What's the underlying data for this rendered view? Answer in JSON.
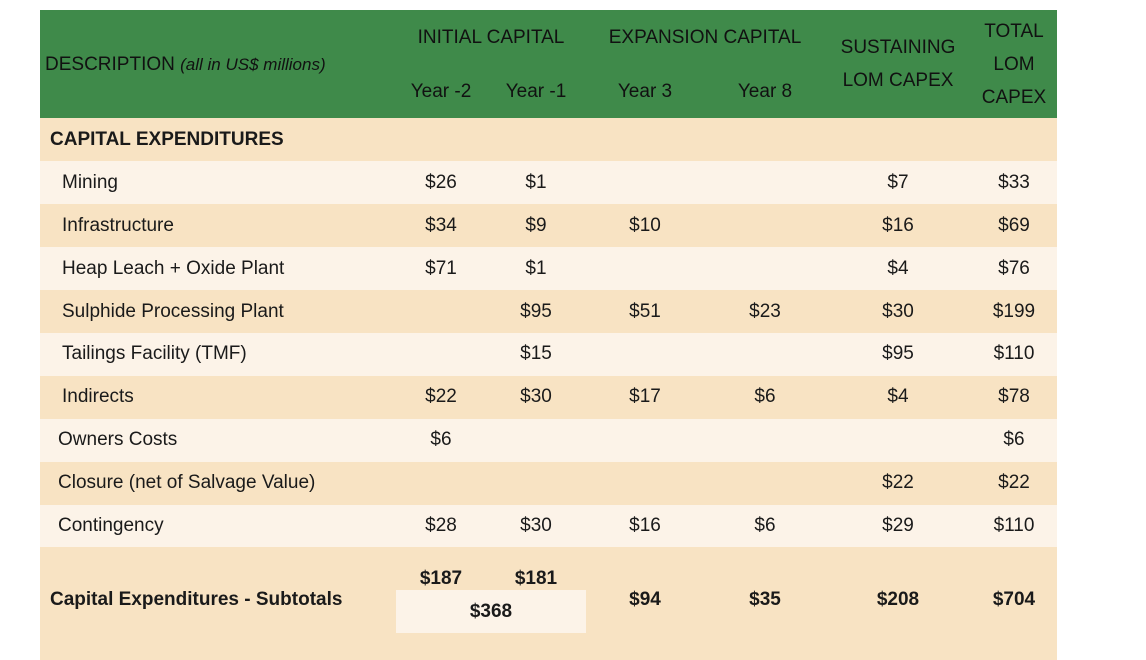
{
  "header": {
    "description_label": "DESCRIPTION",
    "description_unit": "(all in US$ millions)",
    "initial_capital": "INITIAL CAPITAL",
    "expansion_capital": "EXPANSION CAPITAL",
    "sustaining_line1": "SUSTAINING",
    "sustaining_line2": "LOM CAPEX",
    "total_line1": "TOTAL",
    "total_line2": "LOM",
    "total_line3": "CAPEX",
    "year_m2": "Year -2",
    "year_m1": "Year -1",
    "year_3": "Year 3",
    "year_8": "Year 8"
  },
  "section_title": "CAPITAL EXPENDITURES",
  "rows": [
    {
      "label": "Mining",
      "y_m2": "$26",
      "y_m1": "$1",
      "y3": "",
      "y8": "",
      "sust": "$7",
      "total": "$33"
    },
    {
      "label": "Infrastructure",
      "y_m2": "$34",
      "y_m1": "$9",
      "y3": "$10",
      "y8": "",
      "sust": "$16",
      "total": "$69"
    },
    {
      "label": "Heap Leach + Oxide Plant",
      "y_m2": "$71",
      "y_m1": "$1",
      "y3": "",
      "y8": "",
      "sust": "$4",
      "total": "$76"
    },
    {
      "label": "Sulphide Processing Plant",
      "y_m2": "",
      "y_m1": "$95",
      "y3": "$51",
      "y8": "$23",
      "sust": "$30",
      "total": "$199"
    },
    {
      "label": "Tailings Facility (TMF)",
      "y_m2": "",
      "y_m1": "$15",
      "y3": "",
      "y8": "",
      "sust": "$95",
      "total": "$110"
    },
    {
      "label": "Indirects",
      "y_m2": "$22",
      "y_m1": "$30",
      "y3": "$17",
      "y8": "$6",
      "sust": "$4",
      "total": "$78"
    },
    {
      "label": "Owners Costs",
      "y_m2": "$6",
      "y_m1": "",
      "y3": "",
      "y8": "",
      "sust": "",
      "total": "$6"
    },
    {
      "label": "Closure (net of Salvage Value)",
      "y_m2": "",
      "y_m1": "",
      "y3": "",
      "y8": "",
      "sust": "$22",
      "total": "$22"
    },
    {
      "label": "Contingency",
      "y_m2": "$28",
      "y_m1": "$30",
      "y3": "$16",
      "y8": "$6",
      "sust": "$29",
      "total": "$110"
    }
  ],
  "subtotal": {
    "label": "Capital Expenditures - Subtotals",
    "y_m2": "$187",
    "y_m1": "$181",
    "initial_total": "$368",
    "y3": "$94",
    "y8": "$35",
    "sust": "$208",
    "total": "$704"
  },
  "colors": {
    "header_green": "#3f8a4a",
    "row_dark": "#f8e3c3",
    "row_light": "#fcf3e8"
  }
}
